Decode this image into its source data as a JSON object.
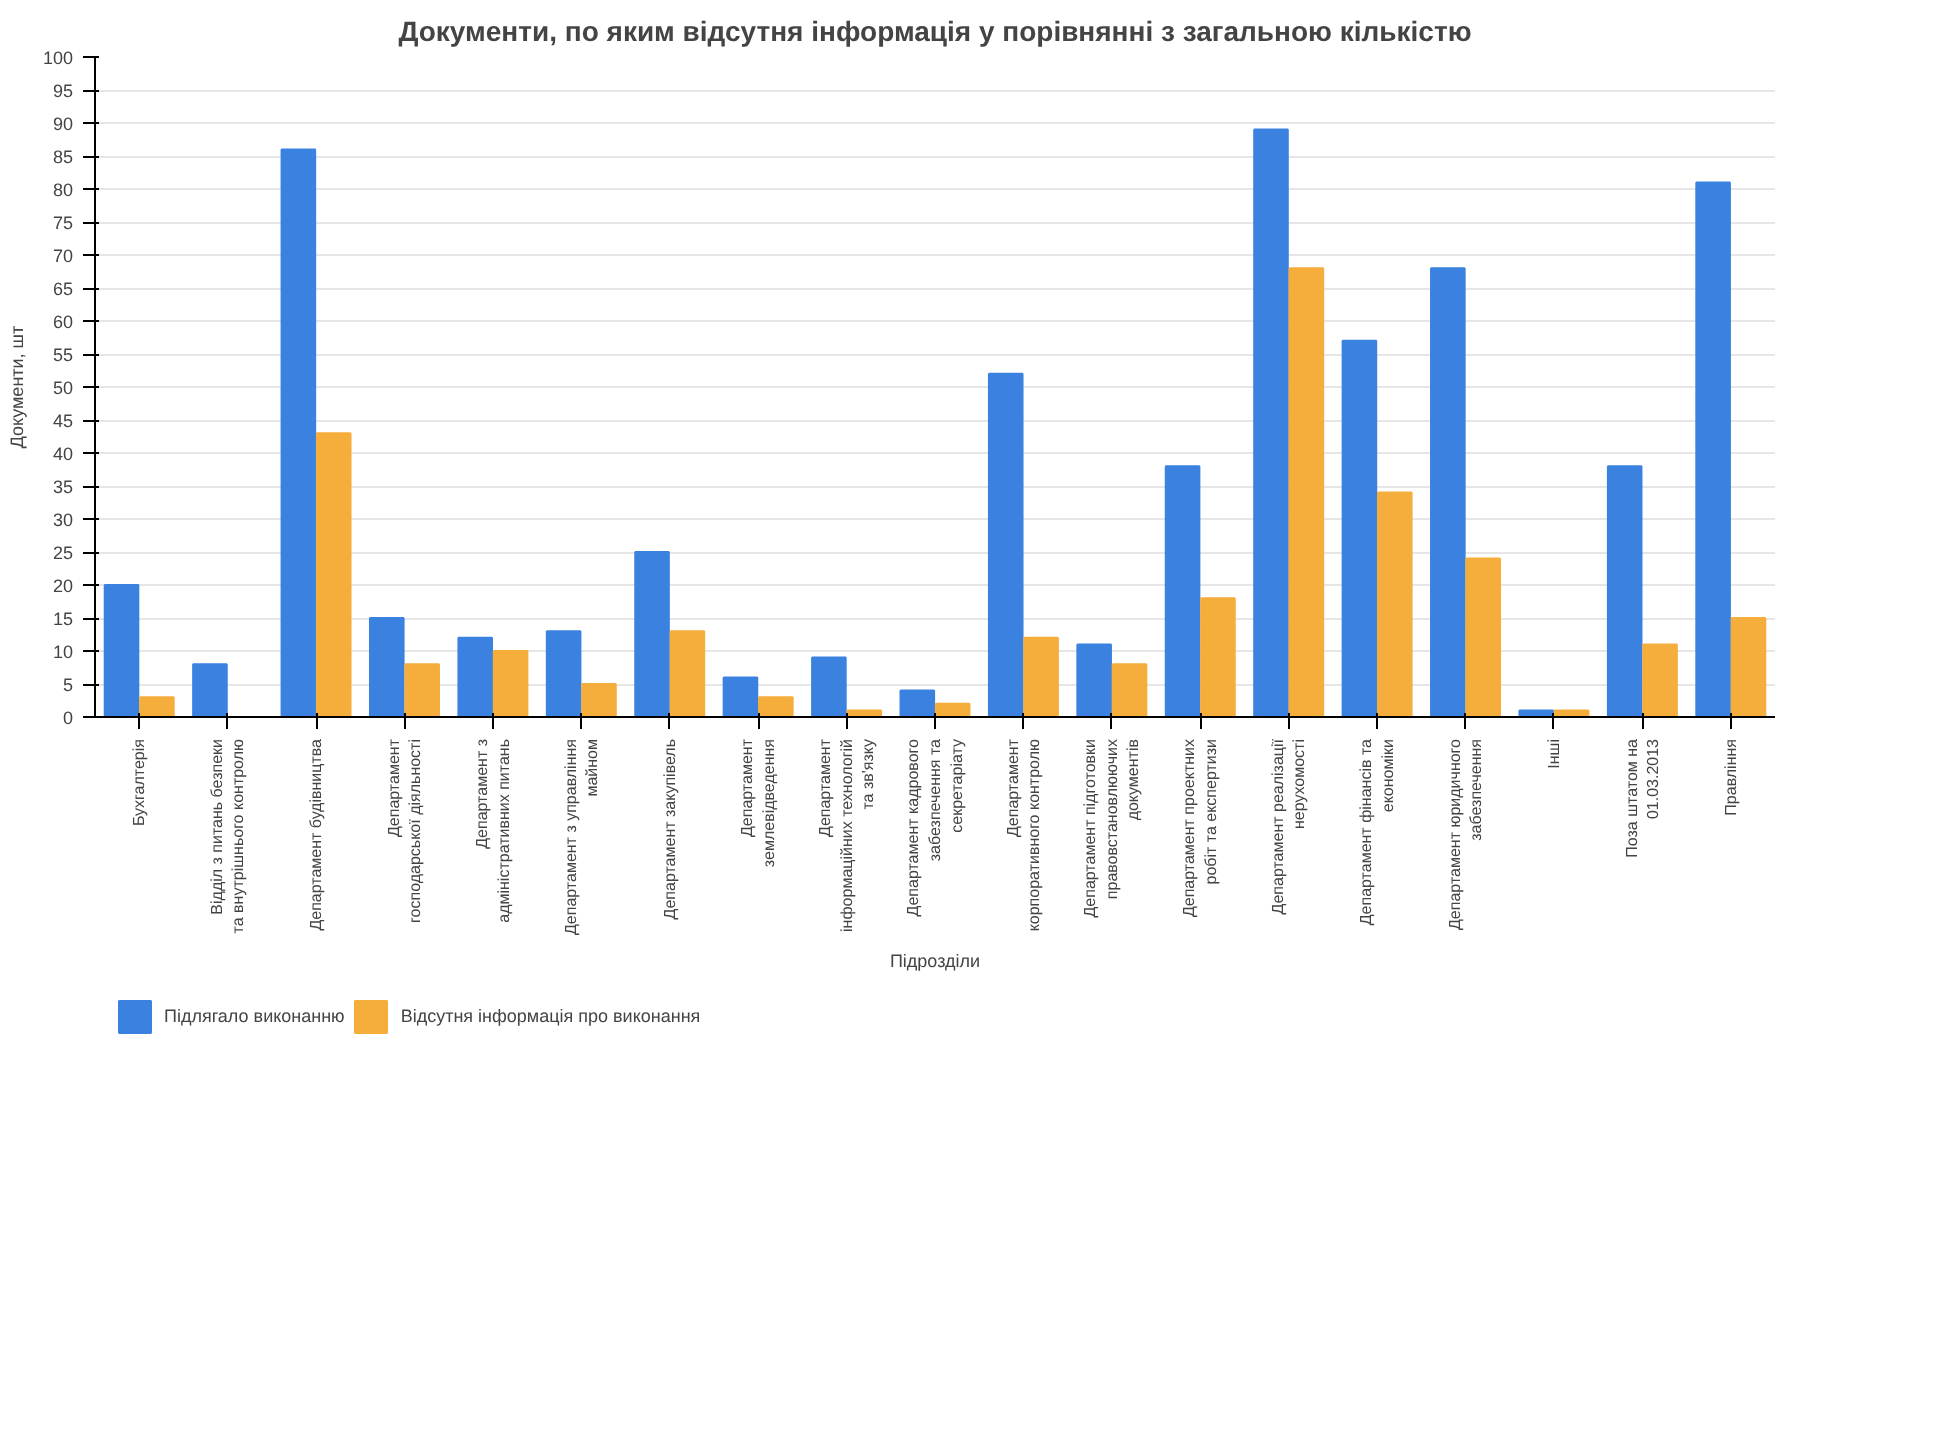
{
  "chart_data": {
    "type": "bar",
    "title": "Документи, по яким відсутня інформація у порівнянні з загальною кількістю",
    "xlabel": "Підрозділи",
    "ylabel": "Документи, шт",
    "categories": [
      "Бухгалтерія",
      "Відділ з питань безпеки та внутрішнього контролю",
      "Департамент будівництва",
      "Департамент господарської діяльності",
      "Департамент з адміністративних питань",
      "Департамент з управління майном",
      "Департамент закупівель",
      "Департамент землевідведення",
      "Департамент інформаційних технологій та зв'язку",
      "Департамент кадрового забезпечення та секретаріату",
      "Департамент корпоративного контролю",
      "Департамент підготовки правовстановлюючих документів",
      "Департамент проектних робіт та експертизи",
      "Департамент реалізації нерухомості",
      "Департамент фінансів та економіки",
      "Департамент юридичного забезпечення",
      "Інші",
      "Поза штатом на 01.03.2013",
      "Правління"
    ],
    "series": [
      {
        "name": "Підлягало виконанню",
        "color": "#3b82e0",
        "values": [
          20,
          8,
          86,
          15,
          12,
          13,
          25,
          6,
          9,
          4,
          52,
          11,
          38,
          89,
          57,
          68,
          1,
          38,
          81
        ]
      },
      {
        "name": "Відсутня інформація про виконання",
        "color": "#f5ad3c",
        "values": [
          3,
          0,
          43,
          8,
          10,
          5,
          13,
          3,
          1,
          2,
          12,
          8,
          18,
          68,
          34,
          24,
          1,
          11,
          15
        ]
      }
    ],
    "ylim": [
      0,
      100
    ],
    "yticks": [
      0,
      5,
      10,
      15,
      20,
      25,
      30,
      35,
      40,
      45,
      50,
      55,
      60,
      65,
      70,
      75,
      80,
      85,
      90,
      95,
      100
    ],
    "grid": "y",
    "legend": "bottom left"
  }
}
